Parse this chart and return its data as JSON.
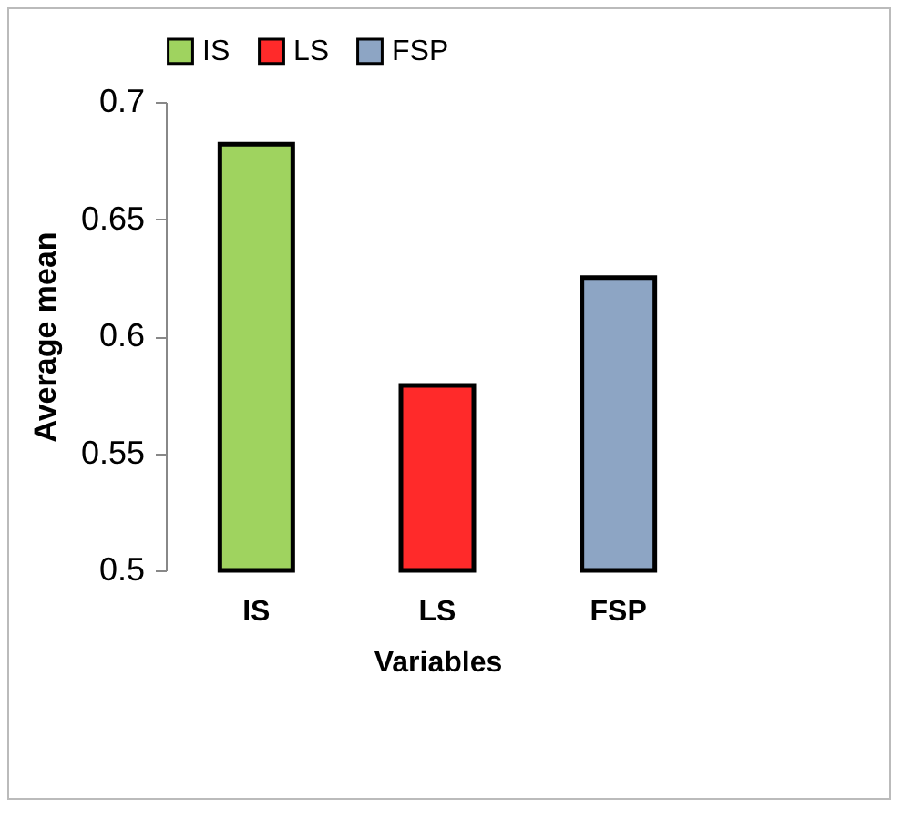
{
  "chart_data": {
    "type": "bar",
    "categories": [
      "IS",
      "LS",
      "FSP"
    ],
    "xlabel": "Variables",
    "ylabel": "Average mean",
    "ylim": [
      0.5,
      0.7
    ],
    "yticks": [
      0.5,
      0.55,
      0.6,
      0.65,
      0.7
    ],
    "grid": false,
    "legend": "top",
    "series": [
      {
        "name": "IS",
        "color": "#9fd35f",
        "values": [
          0.682,
          null,
          null
        ]
      },
      {
        "name": "LS",
        "color": "#ff2a2a",
        "values": [
          null,
          0.579,
          null
        ]
      },
      {
        "name": "FSP",
        "color": "#8da5c4",
        "values": [
          null,
          null,
          0.625
        ]
      }
    ]
  }
}
